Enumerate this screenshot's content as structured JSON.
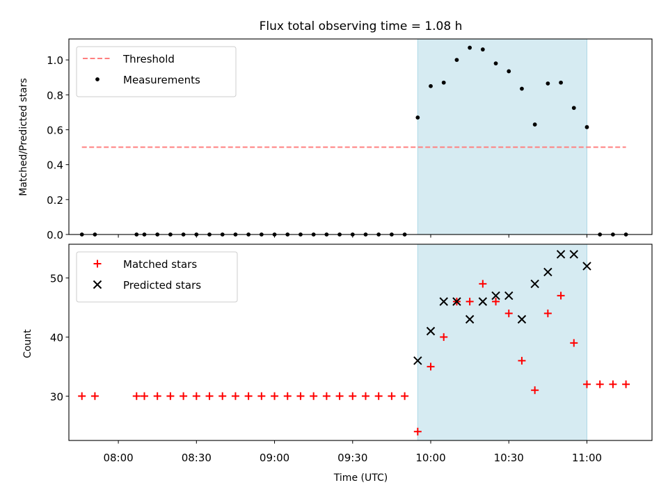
{
  "chart_data": [
    {
      "type": "scatter",
      "title": "Flux total observing time = 1.08 h",
      "ylabel": "Matched/Predicted stars",
      "xlabel": "",
      "ylim": [
        0,
        1.12
      ],
      "yticks": [
        "0.0",
        "0.2",
        "0.4",
        "0.6",
        "0.8",
        "1.0"
      ],
      "x_range": [
        "07:41",
        "11:25"
      ],
      "legend_position": "upper-left",
      "observing_window": [
        "09:55",
        "11:00"
      ],
      "shade_color": "#add8e6",
      "threshold": {
        "name": "Threshold",
        "value": 0.5,
        "x_start": "07:46",
        "x_end": "11:15",
        "color": "#ff7f7f"
      },
      "series": [
        {
          "name": "Measurements",
          "marker": "dot",
          "color": "#000000",
          "points": [
            [
              "07:46",
              0
            ],
            [
              "07:51",
              0
            ],
            [
              "08:07",
              0
            ],
            [
              "08:10",
              0
            ],
            [
              "08:15",
              0
            ],
            [
              "08:20",
              0
            ],
            [
              "08:25",
              0
            ],
            [
              "08:30",
              0
            ],
            [
              "08:35",
              0
            ],
            [
              "08:40",
              0
            ],
            [
              "08:45",
              0
            ],
            [
              "08:50",
              0
            ],
            [
              "08:55",
              0
            ],
            [
              "09:00",
              0
            ],
            [
              "09:05",
              0
            ],
            [
              "09:10",
              0
            ],
            [
              "09:15",
              0
            ],
            [
              "09:20",
              0
            ],
            [
              "09:25",
              0
            ],
            [
              "09:30",
              0
            ],
            [
              "09:35",
              0
            ],
            [
              "09:40",
              0
            ],
            [
              "09:45",
              0
            ],
            [
              "09:50",
              0
            ],
            [
              "09:55",
              0.67
            ],
            [
              "10:00",
              0.85
            ],
            [
              "10:05",
              0.87
            ],
            [
              "10:10",
              1.0
            ],
            [
              "10:15",
              1.07
            ],
            [
              "10:20",
              1.06
            ],
            [
              "10:25",
              0.98
            ],
            [
              "10:30",
              0.935
            ],
            [
              "10:35",
              0.835
            ],
            [
              "10:40",
              0.63
            ],
            [
              "10:45",
              0.865
            ],
            [
              "10:50",
              0.87
            ],
            [
              "10:55",
              0.725
            ],
            [
              "11:00",
              0.615
            ],
            [
              "11:05",
              0
            ],
            [
              "11:10",
              0
            ],
            [
              "11:15",
              0
            ]
          ]
        }
      ]
    },
    {
      "type": "scatter",
      "title": "",
      "ylabel": "Count",
      "xlabel": "Time (UTC)",
      "ylim": [
        22.5,
        55.7
      ],
      "yticks": [
        "30",
        "40",
        "50"
      ],
      "xticks": [
        "08:00",
        "08:30",
        "09:00",
        "09:30",
        "10:00",
        "10:30",
        "11:00"
      ],
      "x_range": [
        "07:41",
        "11:25"
      ],
      "legend_position": "upper-left",
      "observing_window": [
        "09:55",
        "11:00"
      ],
      "shade_color": "#add8e6",
      "series": [
        {
          "name": "Matched stars",
          "marker": "plus",
          "color": "#ff0000",
          "points": [
            [
              "07:46",
              30
            ],
            [
              "07:51",
              30
            ],
            [
              "08:07",
              30
            ],
            [
              "08:10",
              30
            ],
            [
              "08:15",
              30
            ],
            [
              "08:20",
              30
            ],
            [
              "08:25",
              30
            ],
            [
              "08:30",
              30
            ],
            [
              "08:35",
              30
            ],
            [
              "08:40",
              30
            ],
            [
              "08:45",
              30
            ],
            [
              "08:50",
              30
            ],
            [
              "08:55",
              30
            ],
            [
              "09:00",
              30
            ],
            [
              "09:05",
              30
            ],
            [
              "09:10",
              30
            ],
            [
              "09:15",
              30
            ],
            [
              "09:20",
              30
            ],
            [
              "09:25",
              30
            ],
            [
              "09:30",
              30
            ],
            [
              "09:35",
              30
            ],
            [
              "09:40",
              30
            ],
            [
              "09:45",
              30
            ],
            [
              "09:50",
              30
            ],
            [
              "09:55",
              24
            ],
            [
              "10:00",
              35
            ],
            [
              "10:05",
              40
            ],
            [
              "10:10",
              46
            ],
            [
              "10:15",
              46
            ],
            [
              "10:20",
              49
            ],
            [
              "10:25",
              46
            ],
            [
              "10:30",
              44
            ],
            [
              "10:35",
              36
            ],
            [
              "10:40",
              31
            ],
            [
              "10:45",
              44
            ],
            [
              "10:50",
              47
            ],
            [
              "10:55",
              39
            ],
            [
              "11:00",
              32
            ],
            [
              "11:05",
              32
            ],
            [
              "11:10",
              32
            ],
            [
              "11:15",
              32
            ]
          ]
        },
        {
          "name": "Predicted stars",
          "marker": "x",
          "color": "#000000",
          "points": [
            [
              "09:55",
              36
            ],
            [
              "10:00",
              41
            ],
            [
              "10:05",
              46
            ],
            [
              "10:10",
              46
            ],
            [
              "10:15",
              43
            ],
            [
              "10:20",
              46
            ],
            [
              "10:25",
              47
            ],
            [
              "10:30",
              47
            ],
            [
              "10:35",
              43
            ],
            [
              "10:40",
              49
            ],
            [
              "10:45",
              51
            ],
            [
              "10:50",
              54
            ],
            [
              "10:55",
              54
            ],
            [
              "11:00",
              52
            ]
          ]
        }
      ]
    }
  ]
}
